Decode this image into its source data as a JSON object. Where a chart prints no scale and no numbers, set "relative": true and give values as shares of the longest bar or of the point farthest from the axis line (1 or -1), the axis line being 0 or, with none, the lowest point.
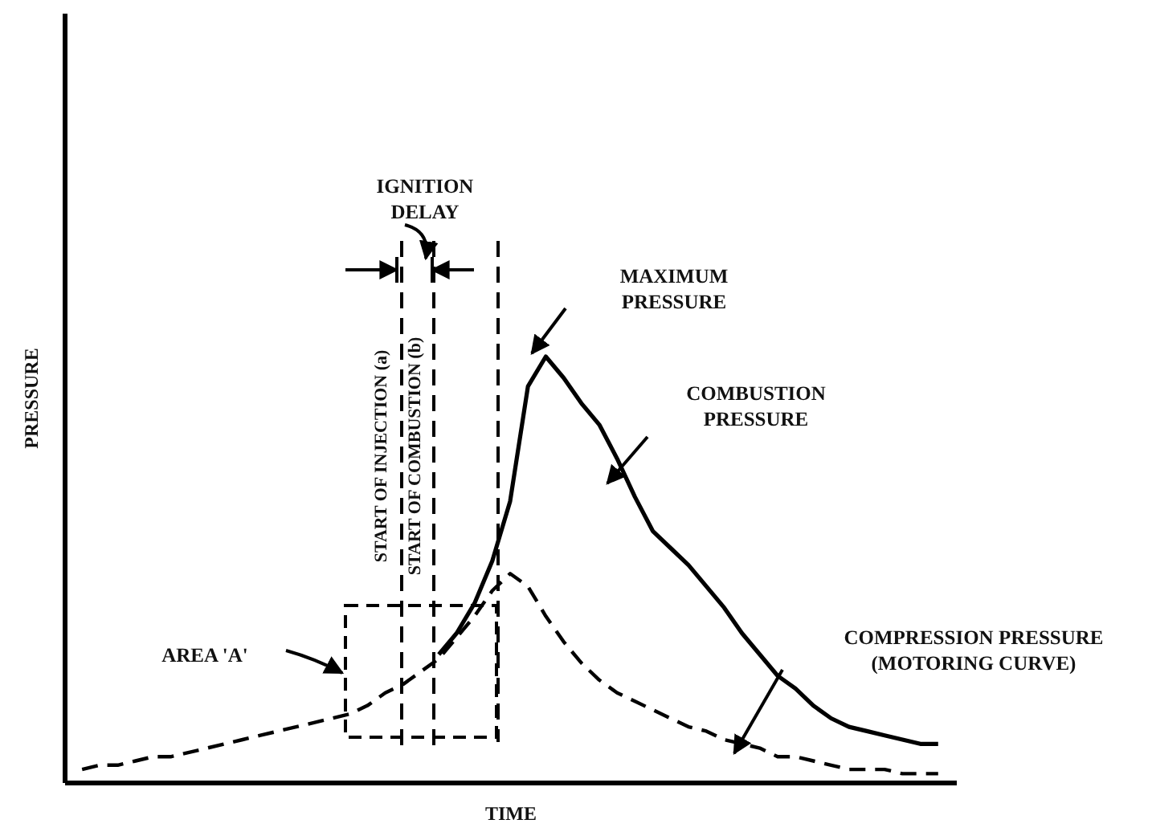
{
  "chart_data": {
    "type": "line",
    "relative": true,
    "xlabel": "TIME",
    "ylabel": "PRESSURE",
    "categories": [
      null,
      null,
      null,
      null,
      null,
      null,
      null,
      null,
      null,
      null,
      null,
      null,
      null,
      null,
      null,
      null,
      null,
      null,
      null,
      null,
      null,
      null,
      null,
      null,
      null,
      null,
      null,
      null,
      null,
      null,
      null,
      null,
      null,
      null,
      null,
      null,
      null,
      null,
      null,
      null,
      null,
      null,
      null,
      null,
      null,
      null,
      null,
      null,
      null
    ],
    "series": [
      {
        "color": "#000000",
        "line_style": "solid",
        "values": [
          null,
          null,
          null,
          null,
          null,
          null,
          null,
          null,
          null,
          null,
          null,
          null,
          null,
          null,
          null,
          null,
          null,
          null,
          null,
          null,
          0.3,
          0.35,
          0.42,
          0.52,
          0.66,
          0.93,
          1,
          0.95,
          0.89,
          0.84,
          0.76,
          0.67,
          0.59,
          0.55,
          0.51,
          0.46,
          0.41,
          0.35,
          0.3,
          0.25,
          0.22,
          0.18,
          0.15,
          0.13,
          0.12,
          0.11,
          0.1,
          0.09,
          0.09
        ]
      },
      {
        "color": "#000000",
        "line_style": "dashed",
        "values": [
          0.03,
          0.04,
          0.04,
          0.05,
          0.06,
          0.06,
          0.07,
          0.08,
          0.09,
          0.1,
          0.11,
          0.12,
          0.13,
          0.14,
          0.15,
          0.16,
          0.18,
          0.21,
          0.23,
          0.26,
          0.29,
          0.34,
          0.39,
          0.45,
          0.49,
          0.46,
          0.39,
          0.33,
          0.28,
          0.24,
          0.21,
          0.19,
          0.17,
          0.15,
          0.13,
          0.12,
          0.1,
          0.09,
          0.08,
          0.06,
          0.06,
          0.05,
          0.04,
          0.03,
          0.03,
          0.03,
          0.02,
          0.02,
          0.02
        ]
      }
    ],
    "annotations": [
      "MAXIMUM PRESSURE",
      "AREA 'A'",
      "IGNITION DELAY",
      "START OF INJECTION (a)",
      "START OF COMBUSTION (b)",
      "COMBUSTION PRESSURE",
      "COMPRESSION PRESSURE (MOTORING CURVE)"
    ],
    "grid": false,
    "marker": "none"
  }
}
